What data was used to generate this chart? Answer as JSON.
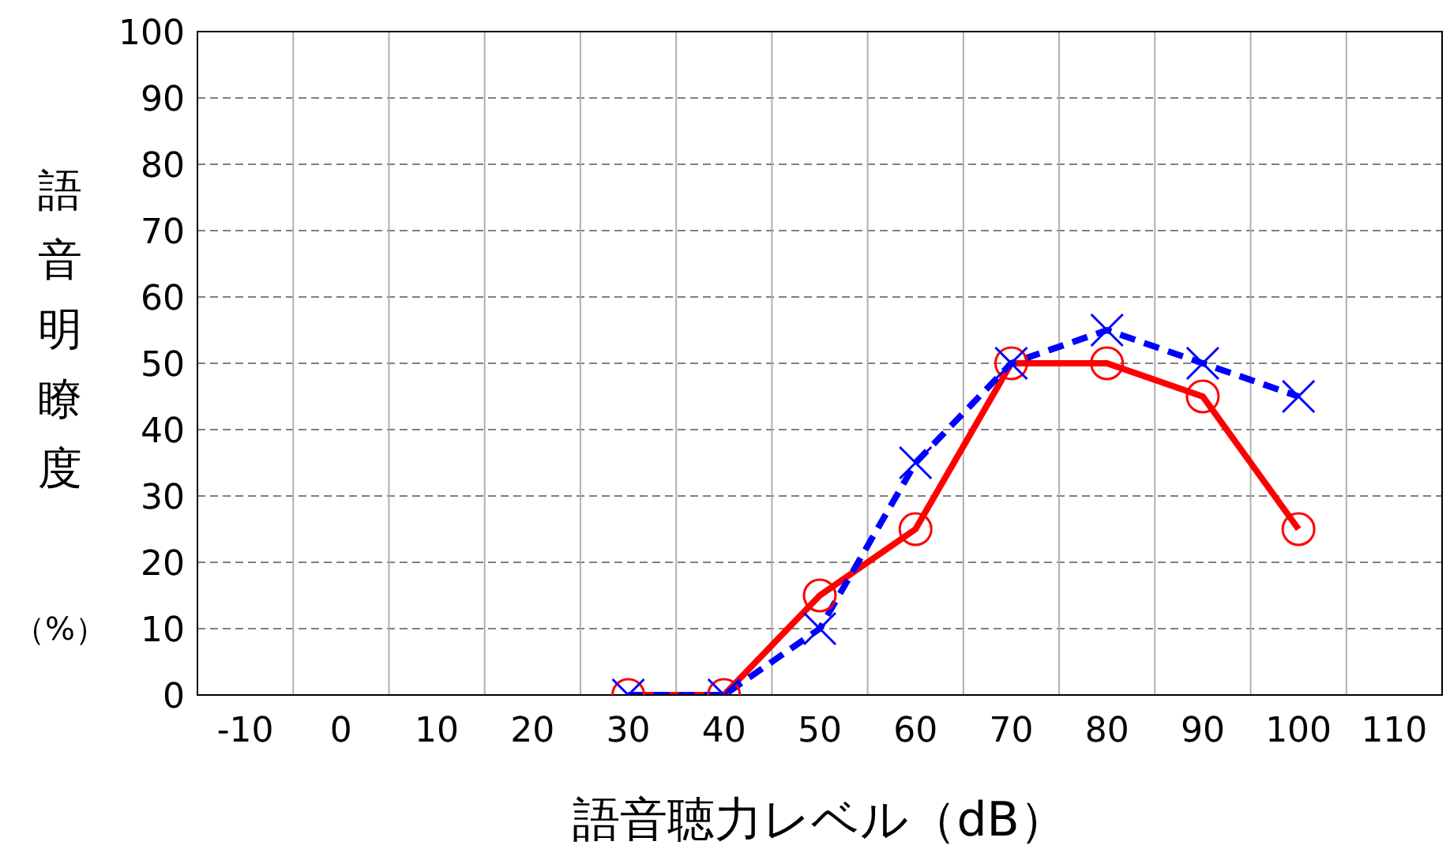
{
  "chart_data": {
    "type": "line",
    "xlabel": "語音聴力レベル（dB）",
    "ylabel": "語音明瞭度",
    "annotations": [
      "（%）"
    ],
    "x": [
      30,
      40,
      50,
      60,
      70,
      80,
      90,
      100
    ],
    "series": [
      {
        "color": "#ff0000",
        "marker": "circle",
        "line_style": "solid",
        "values": [
          0,
          0,
          15,
          25,
          50,
          50,
          45,
          25
        ]
      },
      {
        "color": "#0000ff",
        "marker": "cross",
        "line_style": "dashed",
        "values": [
          0,
          0,
          10,
          35,
          50,
          55,
          50,
          45
        ]
      }
    ],
    "xlim": [
      -15,
      115
    ],
    "xticks": [
      -10,
      0,
      10,
      20,
      30,
      40,
      50,
      60,
      70,
      80,
      90,
      100,
      110
    ],
    "ylim": [
      0,
      100
    ],
    "yticks": [
      0,
      10,
      20,
      30,
      40,
      50,
      60,
      70,
      80,
      90,
      100
    ],
    "grid": true,
    "legend": false
  }
}
